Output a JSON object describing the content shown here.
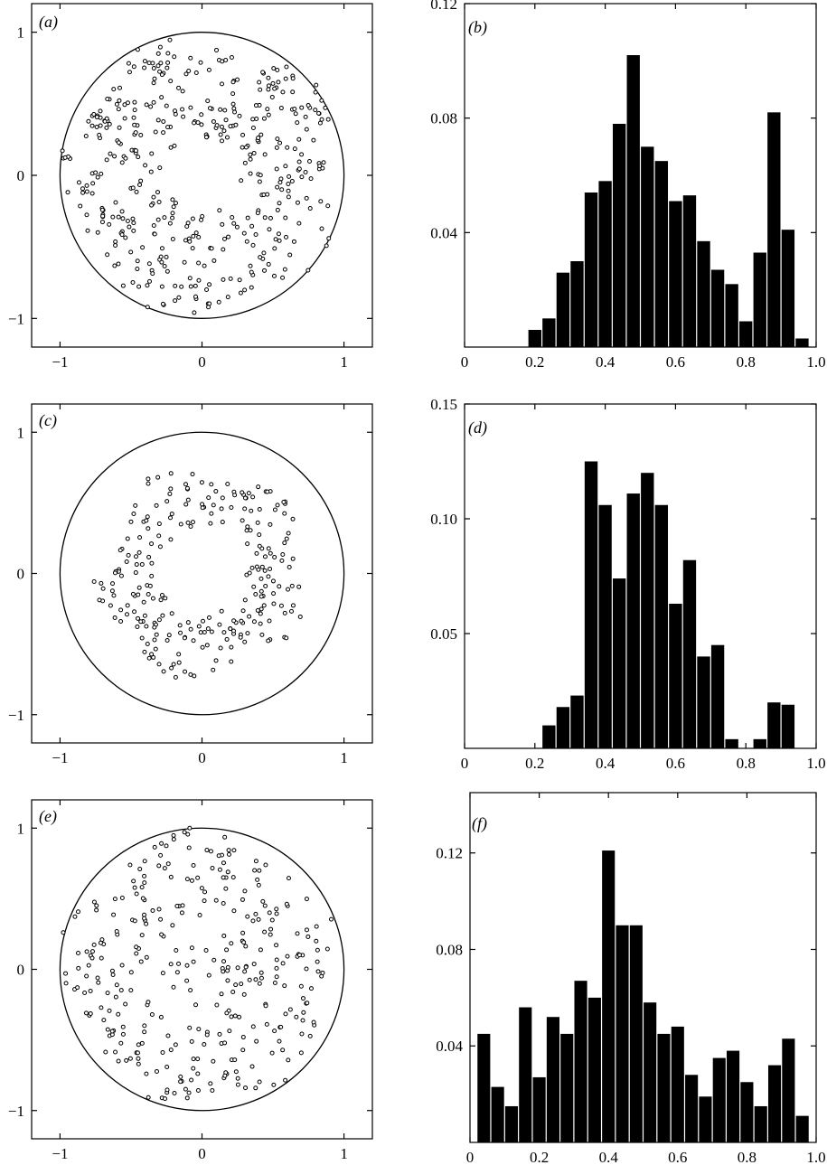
{
  "chart_data": [
    {
      "type": "scatter",
      "panel_label": "(a)",
      "xlim": [
        -1.2,
        1.2
      ],
      "ylim": [
        -1.2,
        1.2
      ],
      "x_ticks": [
        -1,
        0,
        1
      ],
      "x_tick_labels": [
        "−1",
        "0",
        "1"
      ],
      "y_ticks": [
        -1,
        0,
        1
      ],
      "y_tick_labels": [
        "−1",
        "0",
        "1"
      ],
      "unit_circle": true,
      "pattern": {
        "n": 430,
        "r_inner": 0.28,
        "r_outer": 0.95,
        "seed": 11
      }
    },
    {
      "type": "bar",
      "panel_label": "(b)",
      "xlim": [
        0,
        1.0
      ],
      "ylim": [
        0,
        0.12
      ],
      "x_ticks": [
        0,
        0.2,
        0.4,
        0.6,
        0.8,
        1.0
      ],
      "x_tick_labels": [
        "0",
        "0.2",
        "0.4",
        "0.6",
        "0.8",
        "1.0"
      ],
      "y_ticks": [
        0.04,
        0.08,
        0.12
      ],
      "y_tick_labels": [
        "0.04",
        "0.08",
        "0.12"
      ],
      "bin_width": 0.04,
      "bin_starts": [
        0.18,
        0.22,
        0.26,
        0.3,
        0.34,
        0.38,
        0.42,
        0.46,
        0.5,
        0.54,
        0.58,
        0.62,
        0.66,
        0.7,
        0.74,
        0.78,
        0.82,
        0.86,
        0.9,
        0.94
      ],
      "values": [
        0.006,
        0.01,
        0.026,
        0.03,
        0.054,
        0.058,
        0.078,
        0.102,
        0.07,
        0.065,
        0.051,
        0.053,
        0.037,
        0.027,
        0.022,
        0.009,
        0.033,
        0.082,
        0.041,
        0.003
      ]
    },
    {
      "type": "scatter",
      "panel_label": "(c)",
      "xlim": [
        -1.2,
        1.2
      ],
      "ylim": [
        -1.2,
        1.2
      ],
      "x_ticks": [
        -1,
        0,
        1
      ],
      "x_tick_labels": [
        "−1",
        "0",
        "1"
      ],
      "y_ticks": [
        -1,
        0,
        1
      ],
      "y_tick_labels": [
        "−1",
        "0",
        "1"
      ],
      "unit_circle": true,
      "pattern": {
        "n": 250,
        "r_inner": 0.32,
        "r_outer": 0.72,
        "seed": 23
      }
    },
    {
      "type": "bar",
      "panel_label": "(d)",
      "xlim": [
        0,
        1.0
      ],
      "ylim": [
        0,
        0.15
      ],
      "x_ticks": [
        0,
        0.2,
        0.4,
        0.6,
        0.8,
        1.0
      ],
      "x_tick_labels": [
        "0",
        "0.2",
        "0.4",
        "0.6",
        "0.8",
        "1.0"
      ],
      "y_ticks": [
        0.05,
        0.1,
        0.15
      ],
      "y_tick_labels": [
        "0.05",
        "0.10",
        "0.15"
      ],
      "bin_width": 0.04,
      "bin_starts": [
        0.22,
        0.26,
        0.3,
        0.34,
        0.38,
        0.42,
        0.46,
        0.5,
        0.54,
        0.58,
        0.62,
        0.66,
        0.7,
        0.74,
        0.78,
        0.82,
        0.86,
        0.9
      ],
      "values": [
        0.01,
        0.018,
        0.023,
        0.125,
        0.106,
        0.074,
        0.111,
        0.12,
        0.106,
        0.063,
        0.082,
        0.04,
        0.045,
        0.004,
        0.0,
        0.004,
        0.02,
        0.019
      ]
    },
    {
      "type": "scatter",
      "panel_label": "(e)",
      "xlim": [
        -1.2,
        1.2
      ],
      "ylim": [
        -1.2,
        1.2
      ],
      "x_ticks": [
        -1,
        0,
        1
      ],
      "x_tick_labels": [
        "−1",
        "0",
        "1"
      ],
      "y_ticks": [
        -1,
        0,
        1
      ],
      "y_tick_labels": [
        "−1",
        "0",
        "1"
      ],
      "unit_circle": true,
      "pattern": {
        "n": 330,
        "r_inner": 0.0,
        "r_outer": 0.95,
        "seed": 37
      }
    },
    {
      "type": "bar",
      "panel_label": "(f)",
      "xlim": [
        0,
        1.0
      ],
      "ylim": [
        0,
        0.145
      ],
      "x_ticks": [
        0,
        0.2,
        0.4,
        0.6,
        0.8,
        1.0
      ],
      "x_tick_labels": [
        "0",
        "0.2",
        "0.4",
        "0.6",
        "0.8",
        "1.0"
      ],
      "y_ticks": [
        0.04,
        0.08,
        0.12
      ],
      "y_tick_labels": [
        "0.04",
        "0.08",
        "0.12"
      ],
      "bin_width": 0.04,
      "bin_starts": [
        0.02,
        0.06,
        0.1,
        0.14,
        0.18,
        0.22,
        0.26,
        0.3,
        0.34,
        0.38,
        0.42,
        0.46,
        0.5,
        0.54,
        0.58,
        0.62,
        0.66,
        0.7,
        0.74,
        0.78,
        0.82,
        0.86,
        0.9,
        0.94
      ],
      "values": [
        0.045,
        0.023,
        0.015,
        0.056,
        0.027,
        0.052,
        0.045,
        0.067,
        0.06,
        0.121,
        0.09,
        0.09,
        0.058,
        0.045,
        0.048,
        0.028,
        0.019,
        0.035,
        0.038,
        0.025,
        0.015,
        0.032,
        0.043,
        0.011
      ]
    }
  ]
}
